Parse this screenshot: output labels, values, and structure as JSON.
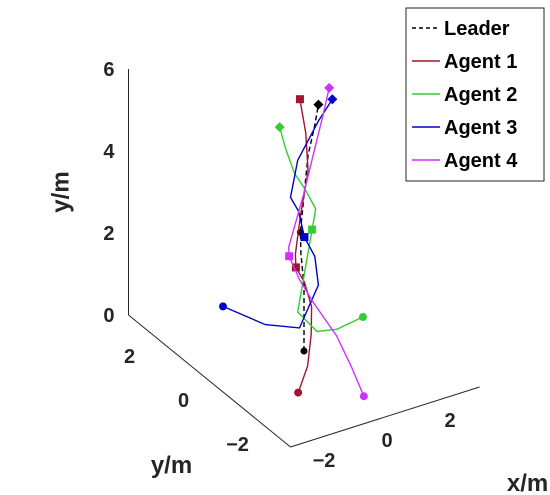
{
  "chart_data": {
    "type": "line",
    "title": "",
    "view": "3d",
    "xlabel": "x/m",
    "ylabel": "y/m",
    "zlabel": "y/m",
    "xlim": [
      -3,
      3
    ],
    "ylim": [
      -3,
      3
    ],
    "zlim": [
      0,
      6
    ],
    "x_ticks": [
      "−2",
      "0",
      "2"
    ],
    "y_ticks": [
      "−2",
      "0",
      "2"
    ],
    "z_ticks": [
      "0",
      "2",
      "4",
      "6"
    ],
    "grid": false,
    "legend_position": "top-right",
    "series": [
      {
        "name": "Leader",
        "color": "#000000",
        "style": "dashed",
        "marker": "none",
        "points": [
          [
            0,
            0,
            0
          ],
          [
            0,
            0,
            0.8
          ],
          [
            0,
            0,
            1.6
          ],
          [
            -0.1,
            0,
            2.4
          ],
          [
            -0.2,
            -0.1,
            3.0
          ],
          [
            0,
            0,
            3.8
          ],
          [
            0.3,
            0.2,
            4.6
          ],
          [
            0.6,
            0.3,
            5.2
          ],
          [
            0.8,
            0.4,
            5.6
          ]
        ]
      },
      {
        "name": "Agent 1",
        "color": "#A2142F",
        "style": "solid",
        "marker": "square",
        "points": [
          [
            -1.3,
            -1.3,
            0
          ],
          [
            -0.4,
            -0.6,
            0.05
          ],
          [
            0.4,
            0.2,
            0.2
          ],
          [
            0.5,
            0.3,
            0.8
          ],
          [
            0.1,
            0.1,
            1.6
          ],
          [
            -0.6,
            -0.4,
            2.4
          ],
          [
            -0.7,
            -0.5,
            2.8
          ],
          [
            -0.2,
            -0.1,
            3.4
          ],
          [
            0.3,
            0.2,
            4.2
          ],
          [
            0.4,
            0.4,
            5.0
          ],
          [
            0.3,
            0.5,
            5.8
          ]
        ]
      },
      {
        "name": "Agent 2",
        "color": "#33CC33",
        "style": "solid",
        "marker": "diamond",
        "points": [
          [
            2.3,
            0.5,
            0
          ],
          [
            1.3,
            0.3,
            0.05
          ],
          [
            0.5,
            0.1,
            0.3
          ],
          [
            -0.2,
            0,
            1.0
          ],
          [
            0.2,
            0.2,
            1.8
          ],
          [
            0.6,
            0.4,
            2.6
          ],
          [
            0.8,
            0.5,
            3.0
          ],
          [
            0.2,
            0.2,
            3.8
          ],
          [
            -0.3,
            0,
            4.4
          ],
          [
            -0.5,
            0.1,
            5.0
          ],
          [
            -0.6,
            0.2,
            5.5
          ]
        ]
      },
      {
        "name": "Agent 3",
        "color": "#0000CC",
        "style": "solid",
        "marker": "diamond",
        "points": [
          [
            -0.6,
            2.3,
            0
          ],
          [
            -0.2,
            1.2,
            0.05
          ],
          [
            0.2,
            0.4,
            0.3
          ],
          [
            0.8,
            0.4,
            1.2
          ],
          [
            0.6,
            0.3,
            2.0
          ],
          [
            0.1,
            0.1,
            2.7
          ],
          [
            0,
            0.2,
            3.3
          ],
          [
            -0.6,
            -0.2,
            4.0
          ],
          [
            -0.2,
            0,
            4.7
          ],
          [
            0.8,
            0.4,
            5.2
          ],
          [
            1.5,
            0.7,
            5.4
          ]
        ]
      },
      {
        "name": "Agent 4",
        "color": "#CC33FF",
        "style": "solid",
        "marker": "diamond",
        "points": [
          [
            0.1,
            -2.1,
            0
          ],
          [
            0.4,
            -1.3,
            0.2
          ],
          [
            0.6,
            -0.5,
            0.5
          ],
          [
            0.2,
            -0.1,
            1.2
          ],
          [
            -0.4,
            -0.3,
            2.0
          ],
          [
            -0.9,
            -0.5,
            2.8
          ],
          [
            -1.0,
            -0.6,
            3.1
          ],
          [
            -0.1,
            -0.1,
            3.9
          ],
          [
            0.7,
            0.4,
            4.6
          ],
          [
            1.1,
            0.6,
            5.1
          ],
          [
            1.4,
            0.7,
            5.7
          ]
        ]
      }
    ]
  }
}
